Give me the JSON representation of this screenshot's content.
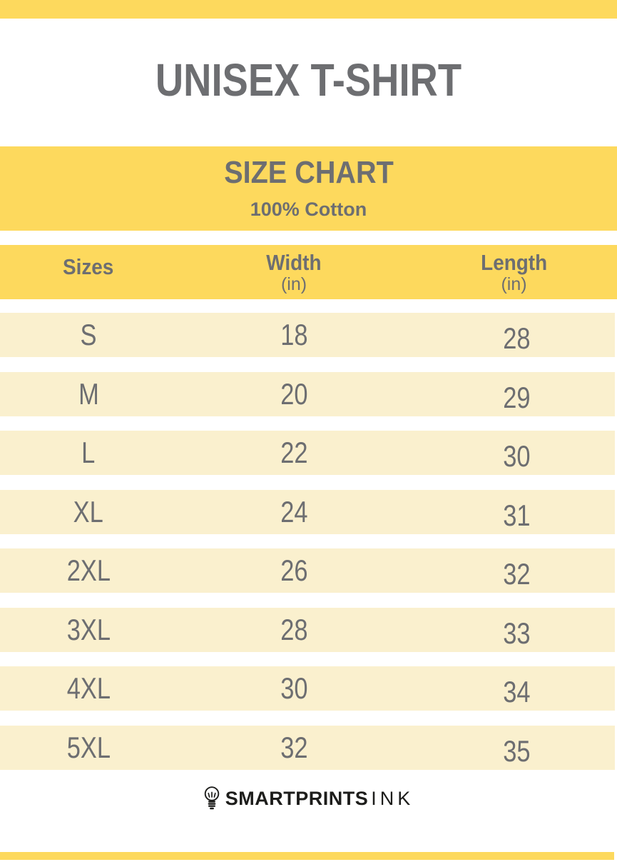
{
  "header": {
    "product_title": "UNISEX T-SHIRT"
  },
  "banner": {
    "title": "SIZE CHART",
    "subtitle": "100% Cotton"
  },
  "table": {
    "columns": [
      {
        "label": "Sizes",
        "unit": ""
      },
      {
        "label": "Width",
        "unit": "(in)"
      },
      {
        "label": "Length",
        "unit": "(in)"
      }
    ],
    "rows": [
      {
        "size": "S",
        "width": "18",
        "length": "28"
      },
      {
        "size": "M",
        "width": "20",
        "length": "29"
      },
      {
        "size": "L",
        "width": "22",
        "length": "30"
      },
      {
        "size": "XL",
        "width": "24",
        "length": "31"
      },
      {
        "size": "2XL",
        "width": "26",
        "length": "32"
      },
      {
        "size": "3XL",
        "width": "28",
        "length": "33"
      },
      {
        "size": "4XL",
        "width": "30",
        "length": "34"
      },
      {
        "size": "5XL",
        "width": "32",
        "length": "35"
      }
    ]
  },
  "footer": {
    "brand_bold": "SMARTPRINTS",
    "brand_light": "INK",
    "icon": "lightbulb-icon"
  },
  "colors": {
    "accent_yellow": "#FDD95D",
    "row_cream": "#FAF0CE",
    "text_gray": "#6D6E71",
    "logo_black": "#1D1D1B"
  },
  "chart_data": {
    "type": "table",
    "product": "UNISEX T-SHIRT",
    "title": "SIZE CHART",
    "subtitle": "100% Cotton",
    "columns": [
      "Sizes",
      "Width (in)",
      "Length (in)"
    ],
    "rows": [
      [
        "S",
        18,
        28
      ],
      [
        "M",
        20,
        29
      ],
      [
        "L",
        22,
        30
      ],
      [
        "XL",
        24,
        31
      ],
      [
        "2XL",
        26,
        32
      ],
      [
        "3XL",
        28,
        33
      ],
      [
        "4XL",
        30,
        34
      ],
      [
        "5XL",
        32,
        35
      ]
    ]
  }
}
